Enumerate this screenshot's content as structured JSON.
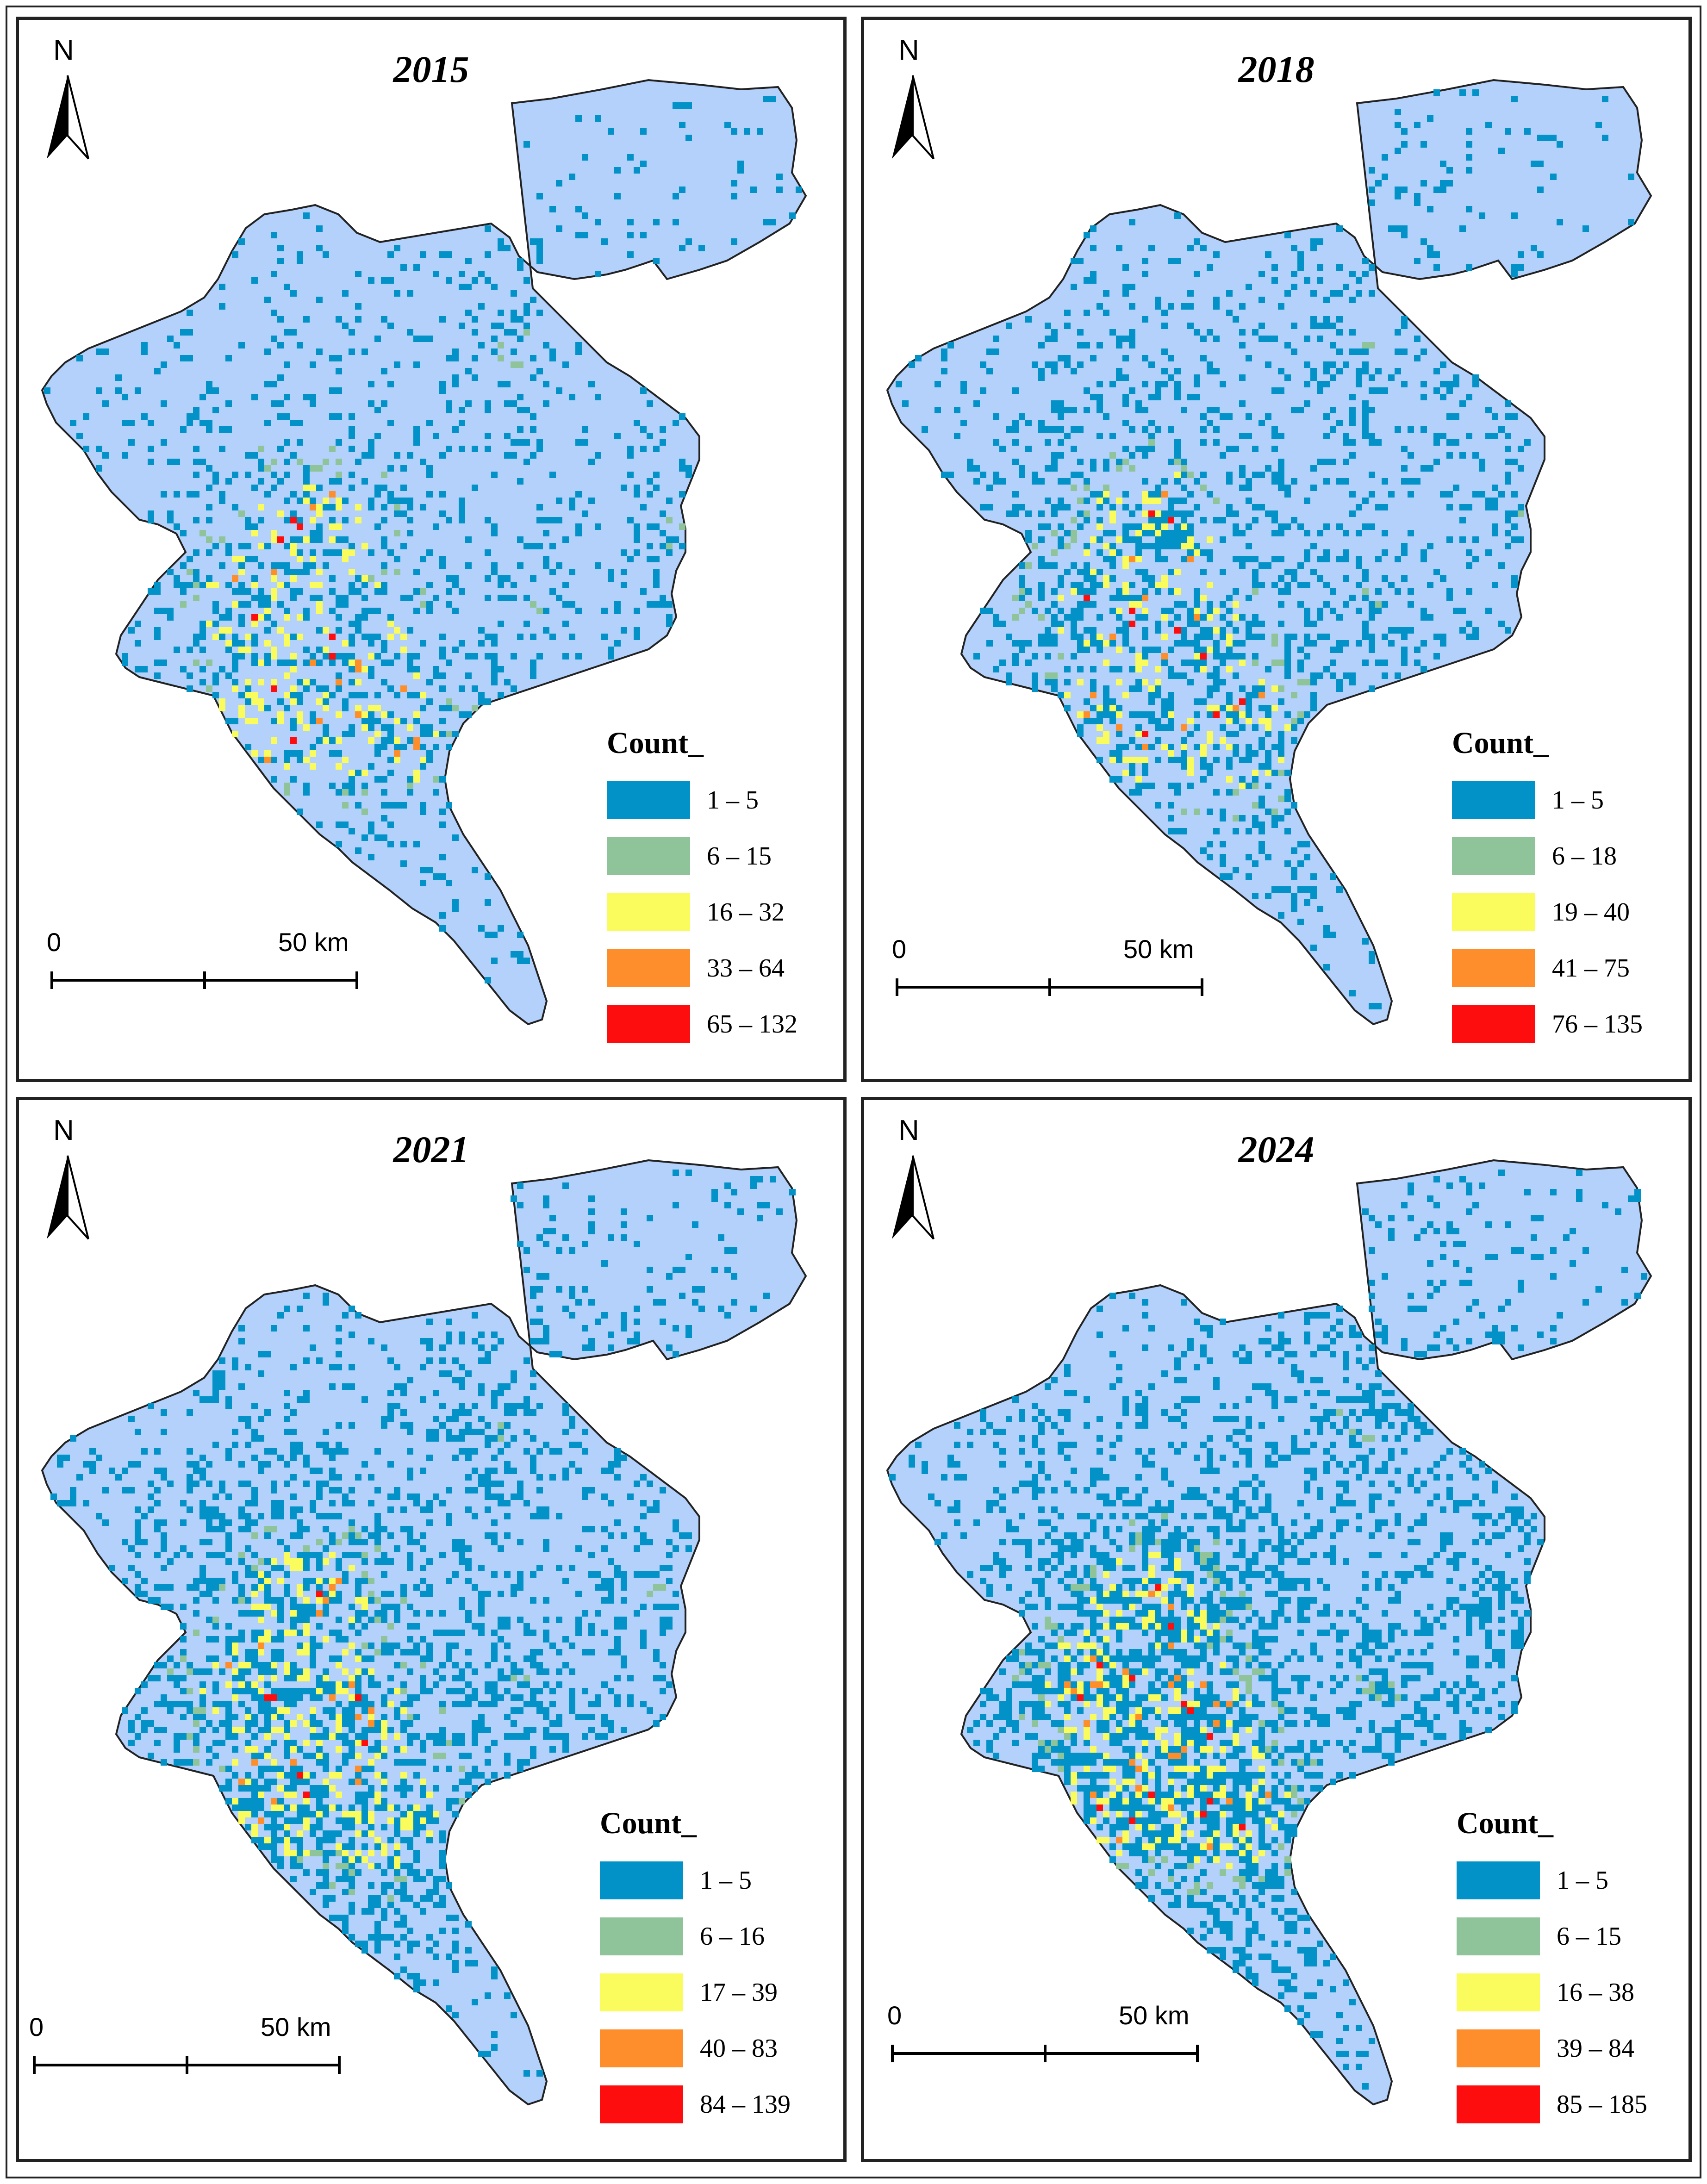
{
  "panels": [
    {
      "year": "2015",
      "legend_title": "Count_",
      "legend": [
        {
          "label": "1 – 5",
          "color": "#0292c8"
        },
        {
          "label": "6 – 15",
          "color": "#8fc49a"
        },
        {
          "label": "16 – 32",
          "color": "#f9fc5c"
        },
        {
          "label": "33 – 64",
          "color": "#fd8e2b"
        },
        {
          "label": "65 – 132",
          "color": "#fd0d0d"
        }
      ],
      "scale": {
        "zero": "0",
        "max": "50 km"
      },
      "north": "N"
    },
    {
      "year": "2018",
      "legend_title": "Count_",
      "legend": [
        {
          "label": "1 – 5",
          "color": "#0292c8"
        },
        {
          "label": "6 – 18",
          "color": "#8fc49a"
        },
        {
          "label": "19 – 40",
          "color": "#f9fc5c"
        },
        {
          "label": "41 – 75",
          "color": "#fd8e2b"
        },
        {
          "label": "76 – 135",
          "color": "#fd0d0d"
        }
      ],
      "scale": {
        "zero": "0",
        "max": "50 km"
      },
      "north": "N"
    },
    {
      "year": "2021",
      "legend_title": "Count_",
      "legend": [
        {
          "label": "1 – 5",
          "color": "#0292c8"
        },
        {
          "label": "6 – 16",
          "color": "#8fc49a"
        },
        {
          "label": "17 – 39",
          "color": "#f9fc5c"
        },
        {
          "label": "40 – 83",
          "color": "#fd8e2b"
        },
        {
          "label": "84 – 139",
          "color": "#fd0d0d"
        }
      ],
      "scale": {
        "zero": "0",
        "max": "50 km"
      },
      "north": "N"
    },
    {
      "year": "2024",
      "legend_title": "Count_",
      "legend": [
        {
          "label": "1 – 5",
          "color": "#0292c8"
        },
        {
          "label": "6 – 15",
          "color": "#8fc49a"
        },
        {
          "label": "16 – 38",
          "color": "#f9fc5c"
        },
        {
          "label": "39 – 84",
          "color": "#fd8e2b"
        },
        {
          "label": "85 – 185",
          "color": "#fd0d0d"
        }
      ],
      "scale": {
        "zero": "0",
        "max": "50 km"
      },
      "north": "N"
    }
  ],
  "colors": {
    "land": "#b3d1fb",
    "border": "#222222"
  }
}
